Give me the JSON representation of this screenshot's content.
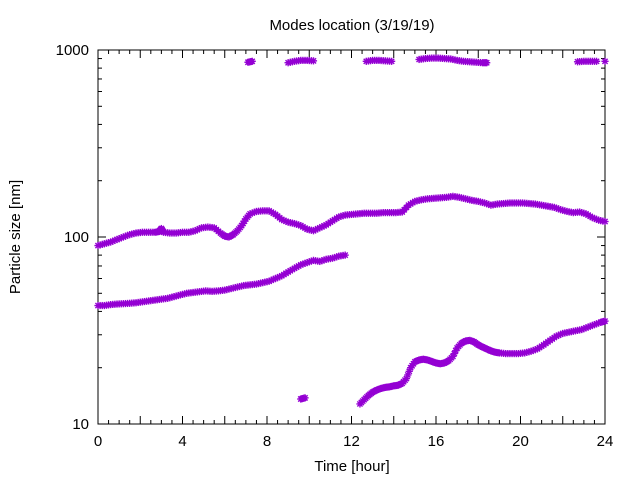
{
  "chart_data": {
    "type": "scatter",
    "title": "Modes location (3/19/19)",
    "xlabel": "Time [hour]",
    "ylabel": "Particle size [nm]",
    "xlim": [
      0,
      24
    ],
    "ylim": [
      10,
      1000
    ],
    "yscale": "log",
    "xticks": [
      0,
      4,
      8,
      12,
      16,
      20,
      24
    ],
    "yticks": [
      10,
      100,
      1000
    ],
    "grid": false,
    "legend": "none",
    "marker": "star",
    "color": "#9400d3",
    "series": [
      {
        "points": [
          [
            0.0,
            90
          ],
          [
            0.3,
            92
          ],
          [
            0.6,
            94
          ],
          [
            0.9,
            97
          ],
          [
            1.2,
            100
          ],
          [
            1.5,
            103
          ],
          [
            1.8,
            105
          ],
          [
            2.1,
            106
          ],
          [
            2.4,
            106
          ],
          [
            2.7,
            106
          ],
          [
            2.9,
            107
          ],
          [
            3.0,
            111
          ],
          [
            3.1,
            106
          ],
          [
            3.4,
            105
          ],
          [
            3.7,
            105
          ],
          [
            4.0,
            106
          ],
          [
            4.3,
            106
          ],
          [
            4.6,
            108
          ],
          [
            4.9,
            112
          ],
          [
            5.2,
            113
          ],
          [
            5.5,
            112
          ],
          [
            5.8,
            105
          ],
          [
            6.0,
            101
          ],
          [
            6.2,
            100
          ],
          [
            6.4,
            103
          ],
          [
            6.6,
            108
          ],
          [
            6.8,
            115
          ],
          [
            7.0,
            125
          ],
          [
            7.2,
            133
          ],
          [
            7.5,
            137
          ],
          [
            7.8,
            138
          ],
          [
            8.1,
            138
          ],
          [
            8.4,
            132
          ],
          [
            8.7,
            124
          ],
          [
            9.0,
            120
          ],
          [
            9.3,
            118
          ],
          [
            9.6,
            115
          ],
          [
            9.9,
            110
          ],
          [
            10.2,
            108
          ],
          [
            10.5,
            112
          ],
          [
            10.8,
            116
          ],
          [
            11.1,
            122
          ],
          [
            11.4,
            128
          ],
          [
            11.7,
            131
          ],
          [
            12.0,
            132
          ],
          [
            12.3,
            133
          ],
          [
            12.6,
            134
          ],
          [
            12.9,
            134
          ],
          [
            13.2,
            134
          ],
          [
            13.5,
            135
          ],
          [
            13.8,
            135
          ],
          [
            14.1,
            135
          ],
          [
            14.4,
            136
          ],
          [
            14.7,
            148
          ],
          [
            15.0,
            155
          ],
          [
            15.3,
            158
          ],
          [
            15.6,
            160
          ],
          [
            15.9,
            161
          ],
          [
            16.2,
            162
          ],
          [
            16.5,
            163
          ],
          [
            16.8,
            165
          ],
          [
            17.1,
            163
          ],
          [
            17.4,
            160
          ],
          [
            17.7,
            157
          ],
          [
            18.0,
            155
          ],
          [
            18.3,
            152
          ],
          [
            18.6,
            148
          ],
          [
            18.9,
            150
          ],
          [
            19.2,
            151
          ],
          [
            19.5,
            152
          ],
          [
            19.8,
            152
          ],
          [
            20.1,
            152
          ],
          [
            20.4,
            151
          ],
          [
            20.7,
            150
          ],
          [
            21.0,
            148
          ],
          [
            21.3,
            146
          ],
          [
            21.6,
            144
          ],
          [
            21.9,
            140
          ],
          [
            22.2,
            137
          ],
          [
            22.5,
            135
          ],
          [
            22.8,
            136
          ],
          [
            23.1,
            133
          ],
          [
            23.4,
            127
          ],
          [
            23.7,
            123
          ],
          [
            24.0,
            121
          ]
        ]
      },
      {
        "points": [
          [
            0.0,
            43
          ],
          [
            0.3,
            43
          ],
          [
            0.6,
            43.5
          ],
          [
            0.9,
            43.8
          ],
          [
            1.2,
            44
          ],
          [
            1.5,
            44.2
          ],
          [
            1.8,
            44.5
          ],
          [
            2.1,
            45
          ],
          [
            2.4,
            45.5
          ],
          [
            2.7,
            46
          ],
          [
            3.0,
            46.5
          ],
          [
            3.3,
            47
          ],
          [
            3.6,
            48
          ],
          [
            3.9,
            49
          ],
          [
            4.2,
            50
          ],
          [
            4.5,
            50.5
          ],
          [
            4.8,
            51
          ],
          [
            5.1,
            51.5
          ],
          [
            5.4,
            51.2
          ],
          [
            5.7,
            51.5
          ],
          [
            6.0,
            52
          ],
          [
            6.3,
            53
          ],
          [
            6.6,
            54
          ],
          [
            6.9,
            55
          ],
          [
            7.2,
            55.5
          ],
          [
            7.5,
            56
          ],
          [
            7.8,
            57
          ],
          [
            8.1,
            58
          ],
          [
            8.4,
            60
          ],
          [
            8.7,
            62
          ],
          [
            9.0,
            65
          ],
          [
            9.3,
            68
          ],
          [
            9.6,
            71
          ],
          [
            9.9,
            73
          ],
          [
            10.2,
            75
          ],
          [
            10.5,
            74
          ],
          [
            10.8,
            76
          ],
          [
            11.1,
            77
          ],
          [
            11.4,
            79
          ],
          [
            11.7,
            80
          ]
        ]
      },
      {
        "points": [
          [
            9.6,
            13.6
          ],
          [
            9.8,
            13.8
          ],
          [
            12.4,
            12.8
          ],
          [
            12.6,
            13.5
          ],
          [
            12.8,
            14.2
          ],
          [
            13.0,
            14.8
          ],
          [
            13.2,
            15.2
          ],
          [
            13.4,
            15.5
          ],
          [
            13.6,
            15.7
          ],
          [
            13.8,
            15.8
          ],
          [
            14.0,
            16.0
          ],
          [
            14.2,
            16.1
          ],
          [
            14.4,
            16.5
          ],
          [
            14.6,
            17.5
          ],
          [
            14.8,
            20.0
          ],
          [
            15.0,
            21.5
          ],
          [
            15.2,
            22.0
          ],
          [
            15.4,
            22.2
          ],
          [
            15.6,
            22.0
          ],
          [
            15.8,
            21.6
          ],
          [
            16.0,
            21.2
          ],
          [
            16.2,
            21.0
          ],
          [
            16.4,
            21.2
          ],
          [
            16.6,
            21.8
          ],
          [
            16.8,
            23.0
          ],
          [
            17.0,
            25.5
          ],
          [
            17.2,
            27.0
          ],
          [
            17.4,
            27.8
          ],
          [
            17.6,
            28.0
          ],
          [
            17.8,
            27.5
          ],
          [
            18.0,
            26.5
          ],
          [
            18.2,
            25.8
          ],
          [
            18.4,
            25.2
          ],
          [
            18.6,
            24.6
          ],
          [
            18.8,
            24.2
          ],
          [
            19.0,
            24.0
          ],
          [
            19.3,
            23.8
          ],
          [
            19.6,
            23.8
          ],
          [
            19.9,
            23.8
          ],
          [
            20.2,
            24.0
          ],
          [
            20.5,
            24.5
          ],
          [
            20.8,
            25.2
          ],
          [
            21.1,
            26.5
          ],
          [
            21.4,
            28.0
          ],
          [
            21.7,
            29.5
          ],
          [
            22.0,
            30.5
          ],
          [
            22.3,
            31.0
          ],
          [
            22.6,
            31.5
          ],
          [
            22.9,
            32.0
          ],
          [
            23.2,
            33.0
          ],
          [
            23.5,
            34.0
          ],
          [
            23.8,
            35.0
          ],
          [
            24.0,
            35.5
          ]
        ]
      },
      {
        "points": [
          [
            7.1,
            860
          ],
          [
            7.3,
            870
          ],
          [
            9.0,
            855
          ],
          [
            9.3,
            870
          ],
          [
            9.6,
            880
          ],
          [
            9.9,
            880
          ],
          [
            10.2,
            875
          ],
          [
            12.7,
            870
          ],
          [
            13.0,
            880
          ],
          [
            13.3,
            880
          ],
          [
            13.6,
            875
          ],
          [
            13.9,
            870
          ],
          [
            15.2,
            890
          ],
          [
            15.5,
            900
          ],
          [
            15.8,
            905
          ],
          [
            16.1,
            905
          ],
          [
            16.4,
            900
          ],
          [
            16.7,
            895
          ],
          [
            17.0,
            880
          ],
          [
            17.3,
            870
          ],
          [
            17.6,
            865
          ],
          [
            17.9,
            860
          ],
          [
            18.2,
            855
          ],
          [
            18.4,
            855
          ],
          [
            22.7,
            865
          ],
          [
            23.0,
            870
          ],
          [
            23.3,
            870
          ],
          [
            23.6,
            870
          ],
          [
            24.0,
            870
          ]
        ]
      }
    ]
  }
}
